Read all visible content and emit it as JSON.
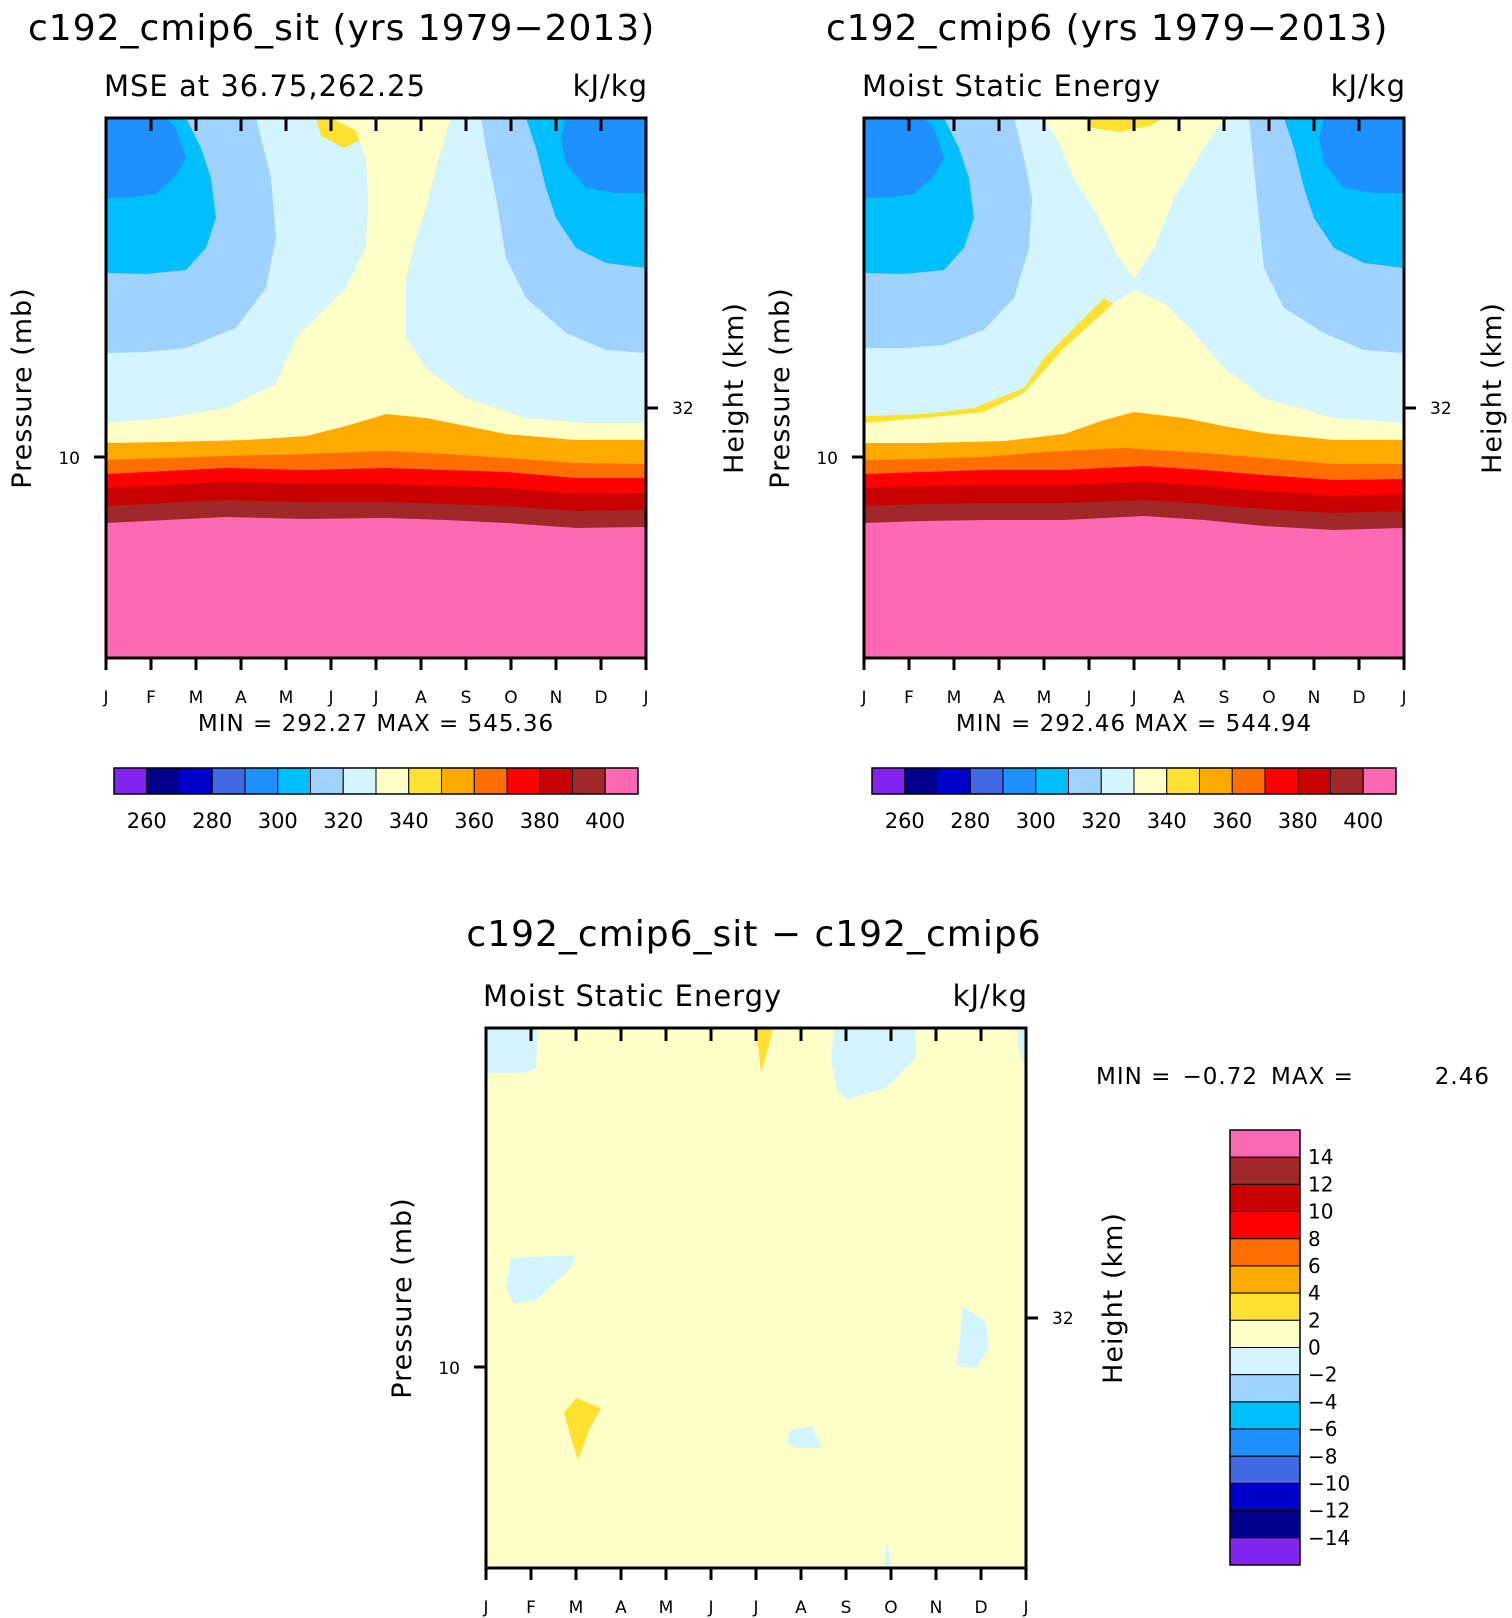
{
  "chart_data": [
    {
      "type": "heatmap",
      "title": "c192_cmip6_sit (yrs 1979−2013)",
      "subtitle_left": "MSE at 36.75,262.25",
      "subtitle_right": "kJ/kg",
      "ylabel": "Pressure (mb)",
      "y2label": "Height (km)",
      "ytick": "10",
      "y2tick": "32",
      "months": [
        "J",
        "F",
        "M",
        "A",
        "M",
        "J",
        "J",
        "A",
        "S",
        "O",
        "N",
        "D",
        "J"
      ],
      "min_max_text": "MIN = 292.27 MAX = 545.36",
      "colorbar_ticks": [
        "260",
        "280",
        "300",
        "320",
        "340",
        "360",
        "380",
        "400"
      ]
    },
    {
      "type": "heatmap",
      "title": "c192_cmip6 (yrs 1979−2013)",
      "subtitle_left": "Moist Static Energy",
      "subtitle_right": "kJ/kg",
      "ylabel": "Pressure (mb)",
      "y2label": "Height (km)",
      "ytick": "10",
      "y2tick": "32",
      "months": [
        "J",
        "F",
        "M",
        "A",
        "M",
        "J",
        "J",
        "A",
        "S",
        "O",
        "N",
        "D",
        "J"
      ],
      "min_max_text": "MIN = 292.46 MAX = 544.94",
      "colorbar_ticks": [
        "260",
        "280",
        "300",
        "320",
        "340",
        "360",
        "380",
        "400"
      ]
    },
    {
      "type": "heatmap",
      "title": "c192_cmip6_sit − c192_cmip6",
      "subtitle_left": "Moist Static Energy",
      "subtitle_right": "kJ/kg",
      "ylabel": "Pressure (mb)",
      "y2label": "Height (km)",
      "ytick": "10",
      "y2tick": "32",
      "months": [
        "J",
        "F",
        "M",
        "A",
        "M",
        "J",
        "J",
        "A",
        "S",
        "O",
        "N",
        "D",
        "J"
      ],
      "min_text": "MIN =",
      "min_value": "−0.72",
      "max_text": "MAX =",
      "max_value": "2.46",
      "colorbar_ticks": [
        "14",
        "12",
        "10",
        "8",
        "6",
        "4",
        "2",
        "0",
        "−2",
        "−4",
        "−6",
        "−8",
        "−10",
        "−12",
        "−14"
      ]
    }
  ],
  "palette": [
    "#8124f0",
    "#00008c",
    "#0000cd",
    "#4169e1",
    "#1e90ff",
    "#00bfff",
    "#a0d2ff",
    "#d2f5ff",
    "#ffffc8",
    "#ffe132",
    "#ffaa00",
    "#ff6e00",
    "#ff0000",
    "#c80000",
    "#a02828",
    "#ff69b4"
  ]
}
